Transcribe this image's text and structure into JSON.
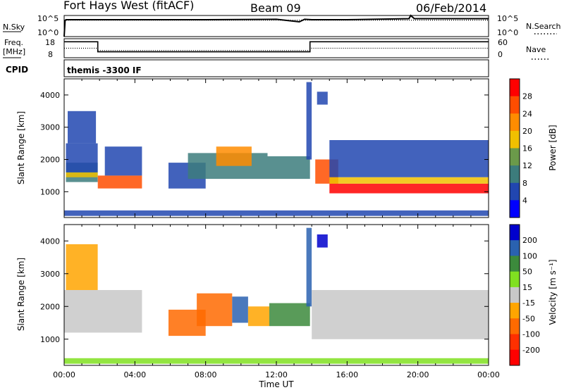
{
  "header": {
    "station": "Fort Hays West (fitACF)",
    "beam": "Beam 09",
    "date": "06/Feb/2014"
  },
  "noise_panel": {
    "left_label": "N.Sky",
    "left_ticks": [
      "10^5",
      "10^0"
    ],
    "right_label": "N.Search",
    "right_ticks": [
      "10^5",
      "10^0"
    ]
  },
  "freq_panel": {
    "left_label_1": "Freq.",
    "left_label_2": "[MHz]",
    "left_ticks": [
      "18",
      "8"
    ],
    "right_label": "Nave",
    "right_ticks": [
      "60",
      "0"
    ]
  },
  "cpid": {
    "label": "CPID",
    "value": "themis -3300 IF"
  },
  "time_axis": {
    "label": "Time UT",
    "ticks": [
      "00:00",
      "04:00",
      "08:00",
      "12:00",
      "16:00",
      "20:00",
      "00:00"
    ]
  },
  "chart_data": [
    {
      "type": "line",
      "name": "noise",
      "x_range_hours": [
        0,
        24
      ],
      "series": [
        {
          "name": "N.Sky",
          "style": "solid",
          "x": [
            0,
            0.05,
            0.1,
            4,
            8,
            12,
            13.3,
            13.6,
            14,
            16,
            19.5,
            19.6,
            19.8,
            24
          ],
          "y_frac": [
            0.0,
            0.75,
            0.8,
            0.8,
            0.8,
            0.82,
            0.7,
            0.82,
            0.8,
            0.8,
            0.85,
            1.0,
            0.85,
            0.85
          ]
        },
        {
          "name": "N.Search",
          "style": "dotted",
          "x": [
            0,
            24
          ],
          "y_frac": [
            0.78,
            0.78
          ]
        }
      ]
    },
    {
      "type": "line",
      "name": "frequency_and_nave",
      "x_range_hours": [
        0,
        24
      ],
      "left_axis": {
        "ticks": [
          18,
          8
        ]
      },
      "right_axis": {
        "ticks": [
          60,
          0
        ]
      },
      "series": [
        {
          "name": "Freq.",
          "style": "solid",
          "x": [
            0,
            1.9,
            1.9,
            13.9,
            13.9,
            24
          ],
          "y": [
            16.4,
            16.4,
            11.1,
            11.1,
            16.4,
            16.4
          ]
        },
        {
          "name": "Nave",
          "style": "dotted",
          "x": [
            0,
            1.9,
            1.9,
            13.9,
            13.9,
            24
          ],
          "y": [
            13.0,
            13.0,
            11.8,
            11.8,
            13.0,
            13.0
          ]
        }
      ]
    },
    {
      "type": "heatmap",
      "name": "power",
      "xlabel": "",
      "ylabel": "Slant Range [km]",
      "x_range_hours": [
        0,
        24
      ],
      "ylim": [
        200,
        4500
      ],
      "yticks": [
        1000,
        2000,
        3000,
        4000
      ],
      "colorbar": {
        "label": "Power [dB]",
        "ticks": [
          "28",
          "24",
          "20",
          "16",
          "12",
          "8",
          "4"
        ],
        "colors": [
          "#ff0000",
          "#ff4d00",
          "#ff8c00",
          "#f0c000",
          "#6b9a4a",
          "#3c7c7c",
          "#2146b0",
          "#0000ff"
        ]
      },
      "bands": [
        {
          "x": [
            0.1,
            1.9
          ],
          "y": [
            1300,
            1900
          ],
          "color": "#3c7c7c"
        },
        {
          "x": [
            0.1,
            1.9
          ],
          "y": [
            1450,
            1600
          ],
          "color": "#f0c000"
        },
        {
          "x": [
            0.1,
            1.9
          ],
          "y": [
            1600,
            2500
          ],
          "color": "#2146b0"
        },
        {
          "x": [
            0.2,
            1.8
          ],
          "y": [
            2500,
            3500
          ],
          "color": "#2146b0"
        },
        {
          "x": [
            1.9,
            4.4
          ],
          "y": [
            1100,
            1500
          ],
          "color": "#ff4d00"
        },
        {
          "x": [
            2.3,
            4.4
          ],
          "y": [
            1500,
            2400
          ],
          "color": "#2146b0"
        },
        {
          "x": [
            5.9,
            8.0
          ],
          "y": [
            1100,
            1900
          ],
          "color": "#2146b0"
        },
        {
          "x": [
            7.0,
            11.5
          ],
          "y": [
            1400,
            2200
          ],
          "color": "#3c7c7c"
        },
        {
          "x": [
            8.6,
            10.6
          ],
          "y": [
            1800,
            2400
          ],
          "color": "#ff8c00"
        },
        {
          "x": [
            11.5,
            13.9
          ],
          "y": [
            1400,
            2100
          ],
          "color": "#3c7c7c"
        },
        {
          "x": [
            13.7,
            14.0
          ],
          "y": [
            2000,
            4400
          ],
          "color": "#2146b0"
        },
        {
          "x": [
            14.3,
            14.9
          ],
          "y": [
            3700,
            4100
          ],
          "color": "#2146b0"
        },
        {
          "x": [
            14.2,
            15.5
          ],
          "y": [
            1250,
            2000
          ],
          "color": "#ff4d00"
        },
        {
          "x": [
            15.0,
            24.0
          ],
          "y": [
            950,
            1250
          ],
          "color": "#ff0000"
        },
        {
          "x": [
            15.0,
            24.0
          ],
          "y": [
            1250,
            1450
          ],
          "color": "#f0c000"
        },
        {
          "x": [
            15.0,
            24.0
          ],
          "y": [
            1450,
            2600
          ],
          "color": "#2146b0"
        },
        {
          "x": [
            0.0,
            24.0
          ],
          "y": [
            250,
            420
          ],
          "color": "#2146b0"
        }
      ]
    },
    {
      "type": "heatmap",
      "name": "velocity",
      "xlabel": "Time UT",
      "ylabel": "Slant Range [km]",
      "x_range_hours": [
        0,
        24
      ],
      "ylim": [
        200,
        4500
      ],
      "yticks": [
        1000,
        2000,
        3000,
        4000
      ],
      "colorbar": {
        "label": "Velocity [m s⁻¹]",
        "ticks": [
          "200",
          "100",
          "50",
          "15",
          "-15",
          "-50",
          "-100",
          "-200"
        ],
        "colors": [
          "#0000cd",
          "#2a62b0",
          "#3c8a3c",
          "#80e020",
          "#c8c8c8",
          "#ffa500",
          "#ff6a00",
          "#ff3000",
          "#ff0000"
        ]
      },
      "bands": [
        {
          "x": [
            0.0,
            4.4
          ],
          "y": [
            1200,
            2500
          ],
          "color": "#c8c8c8"
        },
        {
          "x": [
            0.1,
            1.9
          ],
          "y": [
            2500,
            3900
          ],
          "color": "#ffa500"
        },
        {
          "x": [
            5.9,
            8.0
          ],
          "y": [
            1100,
            1900
          ],
          "color": "#ff6a00"
        },
        {
          "x": [
            7.5,
            9.5
          ],
          "y": [
            1400,
            2400
          ],
          "color": "#ff6a00"
        },
        {
          "x": [
            9.5,
            10.4
          ],
          "y": [
            1500,
            2300
          ],
          "color": "#2a62b0"
        },
        {
          "x": [
            10.4,
            11.6
          ],
          "y": [
            1400,
            2000
          ],
          "color": "#ffa500"
        },
        {
          "x": [
            11.6,
            13.9
          ],
          "y": [
            1400,
            2100
          ],
          "color": "#3c8a3c"
        },
        {
          "x": [
            13.7,
            14.0
          ],
          "y": [
            2000,
            4400
          ],
          "color": "#2a62b0"
        },
        {
          "x": [
            14.3,
            14.9
          ],
          "y": [
            3800,
            4200
          ],
          "color": "#0000cd"
        },
        {
          "x": [
            14.0,
            24.0
          ],
          "y": [
            1000,
            2500
          ],
          "color": "#c8c8c8"
        },
        {
          "x": [
            0.0,
            24.0
          ],
          "y": [
            250,
            420
          ],
          "color": "#80e020"
        }
      ]
    }
  ]
}
